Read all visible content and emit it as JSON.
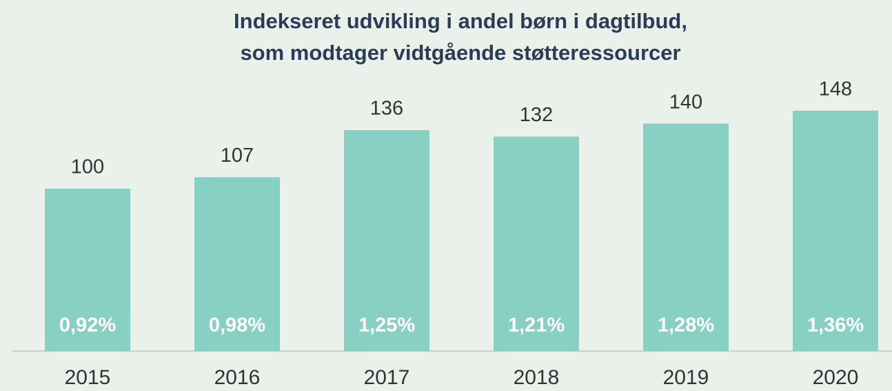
{
  "chart_data": {
    "type": "bar",
    "title": [
      "Indekseret udvikling i andel børn i dagtilbud,",
      "som modtager vidtgående støtteressourcer"
    ],
    "categories": [
      "2015",
      "2016",
      "2017",
      "2018",
      "2019",
      "2020"
    ],
    "values": [
      100,
      107,
      136,
      132,
      140,
      148
    ],
    "inner_labels": [
      "0,92%",
      "0,98%",
      "1,25%",
      "1,21%",
      "1,28%",
      "1,36%"
    ],
    "color": "#88cfc4",
    "ylim": [
      0,
      150
    ]
  }
}
